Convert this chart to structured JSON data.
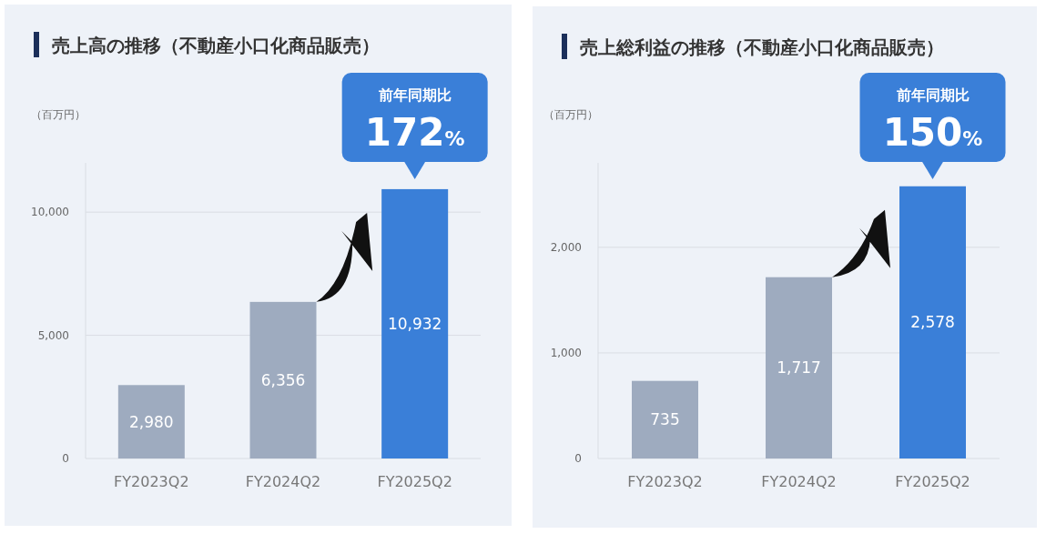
{
  "chart_data": [
    {
      "type": "bar",
      "title": "売上高の推移（不動産小口化商品販売）",
      "ylabel": "（百万円）",
      "categories": [
        "FY2023Q2",
        "FY2024Q2",
        "FY2025Q2"
      ],
      "values": [
        2980,
        6356,
        10932
      ],
      "value_labels": [
        "2,980",
        "6,356",
        "10,932"
      ],
      "colors": [
        "#9eabbf",
        "#9eabbf",
        "#3a7fd8"
      ],
      "ylim": [
        0,
        12000
      ],
      "yticks": [
        0,
        {
          "value": 5000,
          "label": "5,000"
        },
        {
          "value": 10000,
          "label": "10,000"
        }
      ],
      "grid": "y",
      "annotations": [
        "前年同期比",
        "172%"
      ]
    },
    {
      "type": "bar",
      "title": "売上総利益の推移（不動産小口化商品販売）",
      "ylabel": "（百万円）",
      "categories": [
        "FY2023Q2",
        "FY2024Q2",
        "FY2025Q2"
      ],
      "values": [
        735,
        1717,
        2578
      ],
      "value_labels": [
        "735",
        "1,717",
        "2,578"
      ],
      "colors": [
        "#9eabbf",
        "#9eabbf",
        "#3a7fd8"
      ],
      "ylim": [
        0,
        2800
      ],
      "yticks": [
        0,
        {
          "value": 1000,
          "label": "1,000"
        },
        {
          "value": 2000,
          "label": "2,000"
        }
      ],
      "grid": "y",
      "annotations": [
        "前年同期比",
        "150%"
      ]
    }
  ]
}
